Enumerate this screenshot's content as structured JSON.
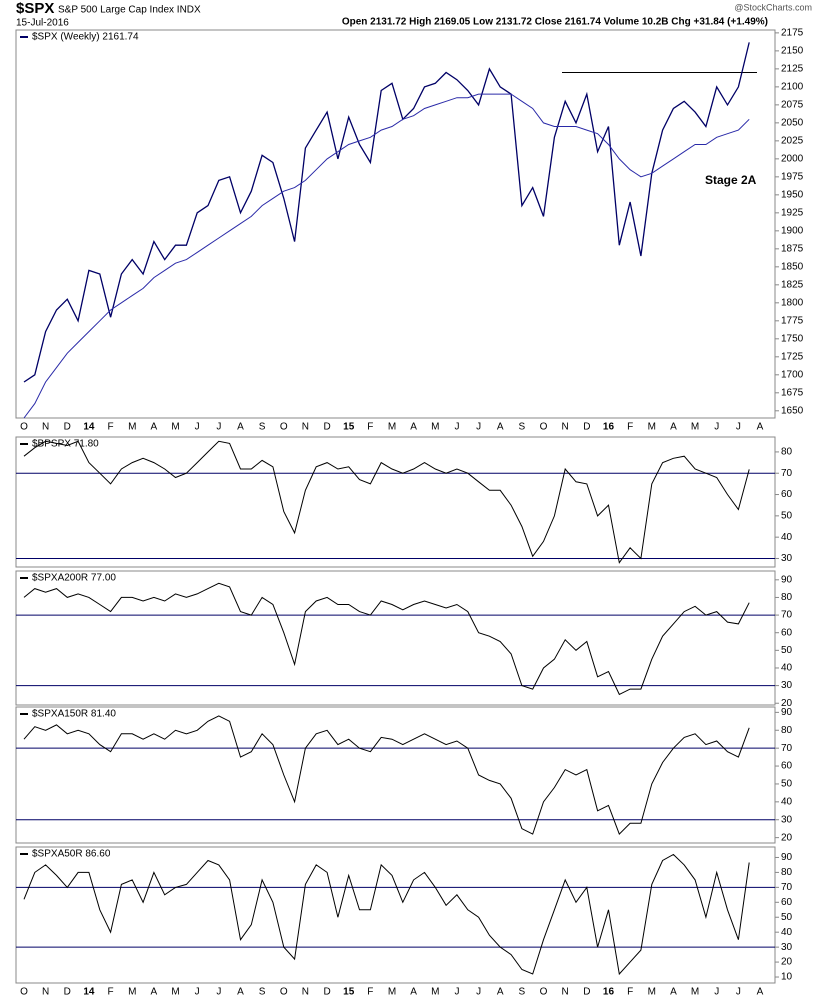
{
  "header": {
    "symbol": "$SPX",
    "name": "S&P 500 Large Cap Index INDX",
    "date": "15-Jul-2016",
    "quote": "Open 2131.72  High 2169.05  Low 2131.72  Close 2161.74  Volume 10.2B  Chg +31.84 (+1.49%)",
    "brand": "@StockCharts.com"
  },
  "chart_data": [
    {
      "type": "line",
      "annotation": "Stage 2A",
      "resistance": 2120,
      "categories": [
        "O",
        null,
        "N",
        null,
        "D",
        null,
        "14",
        null,
        "F",
        null,
        "M",
        null,
        "A",
        null,
        "M",
        null,
        "J",
        null,
        "J",
        null,
        "A",
        null,
        "S",
        null,
        "O",
        null,
        "N",
        null,
        "D",
        null,
        "15",
        null,
        "F",
        null,
        "M",
        null,
        "A",
        null,
        "M",
        null,
        "J",
        null,
        "J",
        null,
        "A",
        null,
        "S",
        null,
        "O",
        null,
        "N",
        null,
        "D",
        null,
        "16",
        null,
        "F",
        null,
        "M",
        null,
        "A",
        null,
        "M",
        null,
        "J",
        null,
        "J",
        null,
        "A"
      ],
      "series": [
        {
          "name": "$SPX (Weekly) 2161.74",
          "color": "#000066",
          "values": [
            1690,
            1700,
            1760,
            1790,
            1805,
            1775,
            1845,
            1840,
            1780,
            1840,
            1860,
            1840,
            1885,
            1860,
            1880,
            1880,
            1925,
            1935,
            1970,
            1975,
            1925,
            1955,
            2005,
            1995,
            1945,
            1885,
            2015,
            2040,
            2065,
            2000,
            2058,
            2020,
            1995,
            2095,
            2105,
            2055,
            2070,
            2100,
            2105,
            2120,
            2110,
            2095,
            2075,
            2125,
            2100,
            2090,
            1935,
            1960,
            1920,
            2030,
            2080,
            2050,
            2090,
            2010,
            2045,
            1880,
            1940,
            1865,
            1980,
            2040,
            2070,
            2080,
            2065,
            2045,
            2100,
            2075,
            2100,
            2161.74,
            null
          ]
        },
        {
          "color": "#2a2aa8",
          "values": [
            1640,
            1660,
            1690,
            1710,
            1730,
            1745,
            1760,
            1775,
            1790,
            1800,
            1810,
            1820,
            1835,
            1845,
            1855,
            1860,
            1870,
            1880,
            1890,
            1900,
            1910,
            1920,
            1935,
            1945,
            1955,
            1960,
            1970,
            1985,
            2000,
            2010,
            2020,
            2025,
            2030,
            2040,
            2045,
            2055,
            2060,
            2070,
            2075,
            2080,
            2085,
            2085,
            2090,
            2090,
            2090,
            2090,
            2080,
            2070,
            2050,
            2045,
            2045,
            2045,
            2040,
            2035,
            2020,
            2000,
            1985,
            1975,
            1980,
            1990,
            2000,
            2010,
            2020,
            2020,
            2030,
            2035,
            2040,
            2055,
            null
          ]
        }
      ],
      "ylim": [
        1640,
        2179
      ],
      "yticks": [
        1650,
        1675,
        1700,
        1725,
        1750,
        1775,
        1800,
        1825,
        1850,
        1875,
        1900,
        1925,
        1950,
        1975,
        2000,
        2025,
        2050,
        2075,
        2100,
        2125,
        2150,
        2175
      ]
    },
    {
      "type": "line",
      "hlines": [
        70,
        30
      ],
      "series": [
        {
          "name": "$BPSPX 71.80",
          "color": "#000000",
          "values": [
            78,
            82,
            85,
            84,
            83,
            85,
            75,
            70,
            65,
            72,
            75,
            77,
            75,
            72,
            68,
            70,
            75,
            80,
            85,
            84,
            72,
            72,
            76,
            73,
            52,
            42,
            62,
            73,
            75,
            72,
            73,
            67,
            65,
            75,
            72,
            70,
            72,
            75,
            72,
            70,
            72,
            70,
            66,
            62,
            62,
            55,
            45,
            31,
            38,
            50,
            72,
            66,
            65,
            50,
            55,
            28,
            35,
            30,
            65,
            75,
            77,
            78,
            72,
            70,
            68,
            60,
            53,
            71.8,
            null
          ]
        }
      ],
      "ylim": [
        26,
        87
      ],
      "yticks": [
        30,
        40,
        50,
        60,
        70,
        80
      ]
    },
    {
      "type": "line",
      "hlines": [
        70,
        30
      ],
      "series": [
        {
          "name": "$SPXA200R 77.00",
          "color": "#000000",
          "values": [
            80,
            85,
            83,
            85,
            80,
            82,
            80,
            76,
            72,
            80,
            80,
            78,
            80,
            78,
            82,
            80,
            82,
            85,
            88,
            86,
            72,
            70,
            80,
            76,
            60,
            42,
            72,
            78,
            80,
            76,
            76,
            72,
            70,
            78,
            76,
            73,
            76,
            78,
            76,
            74,
            76,
            72,
            60,
            58,
            55,
            48,
            30,
            28,
            40,
            45,
            56,
            50,
            55,
            35,
            38,
            25,
            28,
            28,
            45,
            58,
            65,
            72,
            75,
            70,
            72,
            66,
            65,
            77,
            null
          ]
        }
      ],
      "ylim": [
        19,
        95
      ],
      "yticks": [
        20,
        30,
        40,
        50,
        60,
        70,
        80,
        90
      ]
    },
    {
      "type": "line",
      "hlines": [
        70,
        30
      ],
      "series": [
        {
          "name": "$SPXA150R 81.40",
          "color": "#000000",
          "values": [
            75,
            82,
            80,
            83,
            78,
            80,
            78,
            72,
            68,
            78,
            78,
            75,
            78,
            75,
            80,
            78,
            80,
            85,
            88,
            85,
            65,
            68,
            78,
            72,
            55,
            40,
            70,
            78,
            80,
            72,
            75,
            70,
            68,
            76,
            75,
            72,
            75,
            78,
            75,
            72,
            74,
            70,
            55,
            52,
            50,
            42,
            25,
            22,
            40,
            48,
            58,
            55,
            58,
            35,
            38,
            22,
            28,
            28,
            50,
            62,
            70,
            76,
            78,
            72,
            74,
            68,
            65,
            81.4,
            null
          ]
        }
      ],
      "ylim": [
        17,
        93
      ],
      "yticks": [
        20,
        30,
        40,
        50,
        60,
        70,
        80,
        90
      ]
    },
    {
      "type": "line",
      "hlines": [
        70,
        30
      ],
      "categories": [
        "O",
        null,
        "N",
        null,
        "D",
        null,
        "14",
        null,
        "F",
        null,
        "M",
        null,
        "A",
        null,
        "M",
        null,
        "J",
        null,
        "J",
        null,
        "A",
        null,
        "S",
        null,
        "O",
        null,
        "N",
        null,
        "D",
        null,
        "15",
        null,
        "F",
        null,
        "M",
        null,
        "A",
        null,
        "M",
        null,
        "J",
        null,
        "J",
        null,
        "A",
        null,
        "S",
        null,
        "O",
        null,
        "N",
        null,
        "D",
        null,
        "16",
        null,
        "F",
        null,
        "M",
        null,
        "A",
        null,
        "M",
        null,
        "J",
        null,
        "J",
        null,
        "A"
      ],
      "series": [
        {
          "name": "$SPXA50R 86.60",
          "color": "#000000",
          "values": [
            62,
            80,
            85,
            78,
            70,
            80,
            80,
            55,
            40,
            72,
            75,
            60,
            80,
            65,
            70,
            72,
            80,
            88,
            85,
            75,
            35,
            45,
            75,
            60,
            30,
            22,
            72,
            85,
            80,
            50,
            78,
            55,
            55,
            85,
            78,
            60,
            75,
            80,
            70,
            58,
            65,
            55,
            50,
            38,
            30,
            25,
            15,
            12,
            35,
            55,
            75,
            60,
            70,
            30,
            55,
            12,
            20,
            28,
            72,
            88,
            92,
            85,
            75,
            50,
            80,
            55,
            35,
            86.6,
            null
          ]
        }
      ],
      "ylim": [
        6,
        97
      ],
      "yticks": [
        10,
        20,
        30,
        40,
        50,
        60,
        70,
        80,
        90
      ]
    }
  ]
}
